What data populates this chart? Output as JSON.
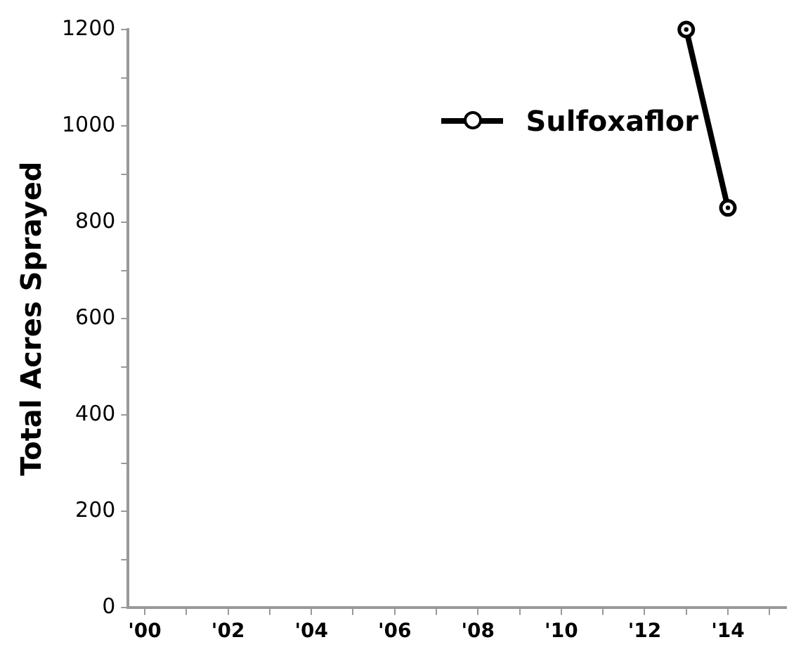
{
  "chart_data": {
    "type": "line",
    "ylabel": "Total Acres Sprayed",
    "x": [
      2013,
      2014
    ],
    "series": [
      {
        "name": "Sulfoxaflor",
        "color": "#000000",
        "values": [
          1200,
          830
        ]
      }
    ],
    "xlim": [
      1999.6,
      2015.4
    ],
    "xticks": [
      {
        "value": 2000,
        "label": "'00"
      },
      {
        "value": 2001,
        "label": null
      },
      {
        "value": 2002,
        "label": "'02"
      },
      {
        "value": 2003,
        "label": null
      },
      {
        "value": 2004,
        "label": "'04"
      },
      {
        "value": 2005,
        "label": null
      },
      {
        "value": 2006,
        "label": "'06"
      },
      {
        "value": 2007,
        "label": null
      },
      {
        "value": 2008,
        "label": "'08"
      },
      {
        "value": 2009,
        "label": null
      },
      {
        "value": 2010,
        "label": "'10"
      },
      {
        "value": 2011,
        "label": null
      },
      {
        "value": 2012,
        "label": "'12"
      },
      {
        "value": 2013,
        "label": null
      },
      {
        "value": 2014,
        "label": "'14"
      },
      {
        "value": 2015,
        "label": null
      }
    ],
    "ylim": [
      0,
      1200
    ],
    "yticks": [
      0,
      {
        "value": 100,
        "label": null
      },
      200,
      {
        "value": 300,
        "label": null
      },
      400,
      {
        "value": 500,
        "label": null
      },
      600,
      {
        "value": 700,
        "label": null
      },
      800,
      {
        "value": 900,
        "label": null
      },
      1000,
      {
        "value": 1100,
        "label": null
      },
      1200
    ],
    "grid": false,
    "legend": "top right",
    "marker": "circle",
    "line_style": "solid"
  }
}
